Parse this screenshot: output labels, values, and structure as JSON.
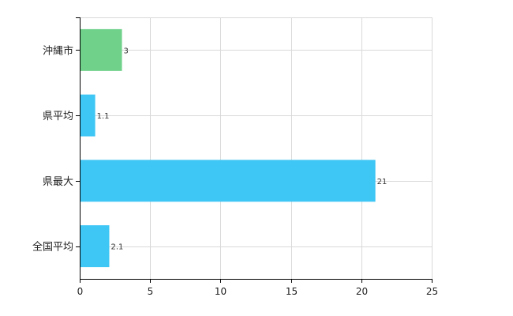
{
  "chart_data": {
    "type": "bar",
    "orientation": "horizontal",
    "categories": [
      "沖縄市",
      "県平均",
      "県最大",
      "全国平均"
    ],
    "values": [
      3,
      1.1,
      21,
      2.1
    ],
    "data_labels": [
      "3",
      "1.1",
      "21",
      "2.1"
    ],
    "xlim": [
      0,
      25
    ],
    "x_ticks": [
      0,
      5,
      10,
      15,
      20,
      25
    ],
    "x_tick_labels": [
      "0",
      "5",
      "10",
      "15",
      "20",
      "25"
    ],
    "grid": true,
    "legend": "none",
    "colors": {
      "highlight": "#6fd18a",
      "default": "#3ec6f4",
      "grid": "#d8d8d8",
      "axis": "#000000"
    },
    "highlight_categories": [
      "沖縄市"
    ]
  }
}
